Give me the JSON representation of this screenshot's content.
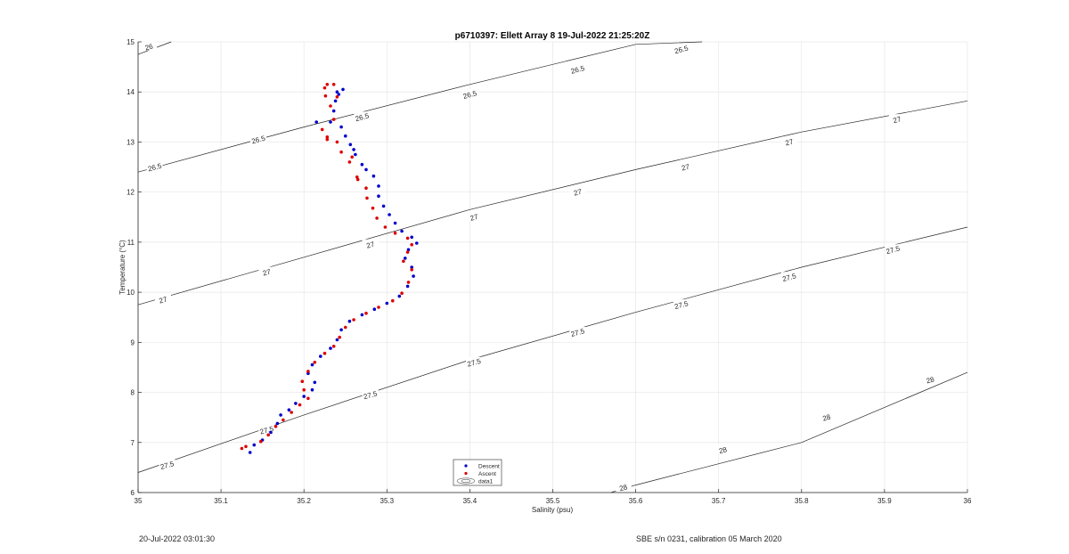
{
  "chart_data": {
    "type": "scatter",
    "title": "p6710397: Ellett Array 8 19-Jul-2022 21:25:20Z",
    "xlabel": "Salinity (psu)",
    "ylabel": "Temperature (°C)",
    "xlim": [
      35,
      36
    ],
    "ylim": [
      6,
      15
    ],
    "x_ticks": [
      "35",
      "35.1",
      "35.2",
      "35.3",
      "35.4",
      "35.5",
      "35.6",
      "35.7",
      "35.8",
      "35.9",
      "36"
    ],
    "y_ticks": [
      "6",
      "7",
      "8",
      "9",
      "10",
      "11",
      "12",
      "13",
      "14",
      "15"
    ],
    "grid": true,
    "legend": {
      "placement": "bottom-center",
      "entries": [
        "Descent",
        "Ascent",
        "data1"
      ]
    },
    "series": [
      {
        "name": "Descent",
        "color": "#0000cc",
        "points": [
          [
            35.135,
            6.8
          ],
          [
            35.14,
            6.95
          ],
          [
            35.15,
            7.05
          ],
          [
            35.16,
            7.2
          ],
          [
            35.168,
            7.38
          ],
          [
            35.172,
            7.55
          ],
          [
            35.182,
            7.65
          ],
          [
            35.19,
            7.78
          ],
          [
            35.2,
            7.92
          ],
          [
            35.21,
            8.05
          ],
          [
            35.213,
            8.2
          ],
          [
            35.205,
            8.38
          ],
          [
            35.21,
            8.55
          ],
          [
            35.22,
            8.72
          ],
          [
            35.232,
            8.88
          ],
          [
            35.24,
            9.05
          ],
          [
            35.245,
            9.25
          ],
          [
            35.255,
            9.42
          ],
          [
            35.27,
            9.55
          ],
          [
            35.285,
            9.66
          ],
          [
            35.3,
            9.78
          ],
          [
            35.315,
            9.92
          ],
          [
            35.325,
            10.12
          ],
          [
            35.332,
            10.32
          ],
          [
            35.33,
            10.5
          ],
          [
            35.322,
            10.68
          ],
          [
            35.326,
            10.85
          ],
          [
            35.336,
            10.98
          ],
          [
            35.33,
            11.1
          ],
          [
            35.318,
            11.22
          ],
          [
            35.31,
            11.38
          ],
          [
            35.303,
            11.55
          ],
          [
            35.296,
            11.72
          ],
          [
            35.29,
            11.92
          ],
          [
            35.29,
            12.12
          ],
          [
            35.284,
            12.32
          ],
          [
            35.27,
            12.55
          ],
          [
            35.262,
            12.75
          ],
          [
            35.256,
            12.95
          ],
          [
            35.25,
            13.12
          ],
          [
            35.245,
            13.3
          ],
          [
            35.232,
            13.4
          ],
          [
            35.236,
            13.62
          ],
          [
            35.238,
            13.82
          ],
          [
            35.242,
            13.95
          ],
          [
            35.247,
            14.05
          ],
          [
            35.24,
            14.0
          ],
          [
            35.215,
            13.4
          ],
          [
            35.26,
            12.85
          ],
          [
            35.275,
            12.45
          ]
        ]
      },
      {
        "name": "Ascent",
        "color": "#dd0000",
        "points": [
          [
            35.125,
            6.88
          ],
          [
            35.13,
            6.92
          ],
          [
            35.148,
            7.02
          ],
          [
            35.157,
            7.15
          ],
          [
            35.166,
            7.32
          ],
          [
            35.175,
            7.45
          ],
          [
            35.185,
            7.6
          ],
          [
            35.195,
            7.75
          ],
          [
            35.205,
            7.88
          ],
          [
            35.2,
            8.05
          ],
          [
            35.198,
            8.22
          ],
          [
            35.205,
            8.42
          ],
          [
            35.213,
            8.6
          ],
          [
            35.225,
            8.78
          ],
          [
            35.236,
            8.92
          ],
          [
            35.243,
            9.1
          ],
          [
            35.25,
            9.3
          ],
          [
            35.26,
            9.45
          ],
          [
            35.275,
            9.58
          ],
          [
            35.29,
            9.7
          ],
          [
            35.307,
            9.83
          ],
          [
            35.318,
            9.98
          ],
          [
            35.326,
            10.2
          ],
          [
            35.33,
            10.45
          ],
          [
            35.32,
            10.62
          ],
          [
            35.325,
            10.8
          ],
          [
            35.33,
            10.95
          ],
          [
            35.325,
            11.08
          ],
          [
            35.31,
            11.18
          ],
          [
            35.298,
            11.3
          ],
          [
            35.288,
            11.48
          ],
          [
            35.283,
            11.68
          ],
          [
            35.276,
            11.88
          ],
          [
            35.275,
            12.08
          ],
          [
            35.264,
            12.3
          ],
          [
            35.255,
            12.6
          ],
          [
            35.245,
            12.8
          ],
          [
            35.24,
            13.0
          ],
          [
            35.228,
            13.1
          ],
          [
            35.222,
            13.25
          ],
          [
            35.236,
            13.45
          ],
          [
            35.232,
            13.72
          ],
          [
            35.226,
            13.92
          ],
          [
            35.225,
            14.08
          ],
          [
            35.228,
            14.15
          ],
          [
            35.236,
            14.15
          ],
          [
            35.24,
            13.9
          ],
          [
            35.228,
            13.05
          ],
          [
            35.258,
            12.7
          ],
          [
            35.265,
            12.25
          ]
        ]
      },
      {
        "name": "data1",
        "type": "contour",
        "color": "#262626",
        "levels": [
          {
            "label": "26",
            "points": [
              [
                35,
                14.75
              ],
              [
                35.04,
                15.0
              ]
            ]
          },
          {
            "label": "26.5",
            "points": [
              [
                35,
                12.4
              ],
              [
                35.2,
                13.3
              ],
              [
                35.4,
                14.15
              ],
              [
                35.6,
                14.95
              ],
              [
                35.68,
                15.0
              ]
            ]
          },
          {
            "label": "27",
            "points": [
              [
                35,
                9.75
              ],
              [
                35.2,
                10.7
              ],
              [
                35.4,
                11.65
              ],
              [
                35.6,
                12.45
              ],
              [
                35.8,
                13.2
              ],
              [
                36,
                13.82
              ]
            ]
          },
          {
            "label": "27.5",
            "points": [
              [
                35,
                6.4
              ],
              [
                35.2,
                7.55
              ],
              [
                35.4,
                8.65
              ],
              [
                35.6,
                9.6
              ],
              [
                35.8,
                10.5
              ],
              [
                36,
                11.3
              ]
            ]
          },
          {
            "label": "28",
            "points": [
              [
                35.57,
                6.0
              ],
              [
                35.6,
                6.15
              ],
              [
                35.8,
                7.0
              ],
              [
                36,
                8.4
              ]
            ]
          }
        ],
        "contour_labels": [
          {
            "label": "26",
            "at": [
              35.013,
              14.9
            ]
          },
          {
            "label": "26.5",
            "at": [
              35.02,
              12.5
            ]
          },
          {
            "label": "26.5",
            "at": [
              35.145,
              13.05
            ]
          },
          {
            "label": "26.5",
            "at": [
              35.27,
              13.5
            ]
          },
          {
            "label": "26.5",
            "at": [
              35.4,
              13.95
            ]
          },
          {
            "label": "26.5",
            "at": [
              35.53,
              14.45
            ]
          },
          {
            "label": "26.5",
            "at": [
              35.655,
              14.85
            ]
          },
          {
            "label": "27",
            "at": [
              35.03,
              9.85
            ]
          },
          {
            "label": "27",
            "at": [
              35.155,
              10.4
            ]
          },
          {
            "label": "27",
            "at": [
              35.28,
              10.95
            ]
          },
          {
            "label": "27",
            "at": [
              35.405,
              11.5
            ]
          },
          {
            "label": "27",
            "at": [
              35.53,
              12.0
            ]
          },
          {
            "label": "27",
            "at": [
              35.66,
              12.5
            ]
          },
          {
            "label": "27",
            "at": [
              35.785,
              13.0
            ]
          },
          {
            "label": "27",
            "at": [
              35.915,
              13.45
            ]
          },
          {
            "label": "27.5",
            "at": [
              35.035,
              6.55
            ]
          },
          {
            "label": "27.5",
            "at": [
              35.155,
              7.25
            ]
          },
          {
            "label": "27.5",
            "at": [
              35.28,
              7.95
            ]
          },
          {
            "label": "27.5",
            "at": [
              35.405,
              8.6
            ]
          },
          {
            "label": "27.5",
            "at": [
              35.53,
              9.2
            ]
          },
          {
            "label": "27.5",
            "at": [
              35.655,
              9.75
            ]
          },
          {
            "label": "27.5",
            "at": [
              35.785,
              10.3
            ]
          },
          {
            "label": "27.5",
            "at": [
              35.91,
              10.85
            ]
          },
          {
            "label": "28",
            "at": [
              35.585,
              6.1
            ]
          },
          {
            "label": "28",
            "at": [
              35.705,
              6.85
            ]
          },
          {
            "label": "28",
            "at": [
              35.83,
              7.5
            ]
          },
          {
            "label": "28",
            "at": [
              35.955,
              8.25
            ]
          }
        ]
      }
    ]
  },
  "footer": {
    "left_timestamp": "20-Jul-2022 03:01:30",
    "right_note": "SBE s/n 0231, calibration 05 March 2020"
  }
}
